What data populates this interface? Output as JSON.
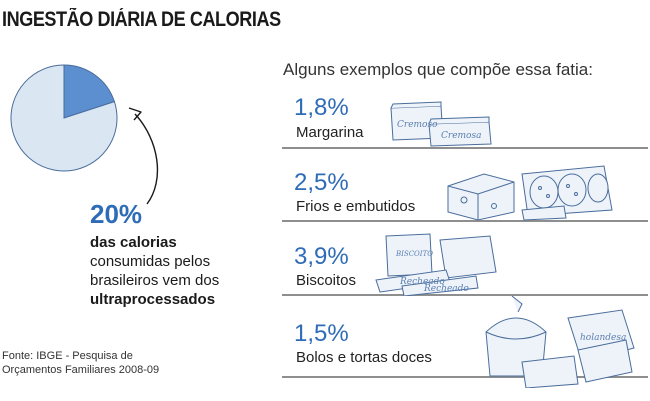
{
  "title": "INGESTÃO DIÁRIA DE CALORIAS",
  "headline": {
    "percent": "20%",
    "line1_bold": "das calorias",
    "line2": "consumidas pelos",
    "line3": "brasileiros vem dos",
    "line4_bold": "ultraprocessados"
  },
  "source": {
    "line1": "Fonte: IBGE - Pesquisa de",
    "line2": "Orçamentos Familiares 2008-09"
  },
  "examples_title": "Alguns exemplos que compõe essa fatia:",
  "chart_data": {
    "type": "pie",
    "title": "INGESTÃO DIÁRIA DE CALORIAS",
    "slices": [
      {
        "label": "ultraprocessados",
        "value": 20,
        "color": "#5b8fd0"
      },
      {
        "label": "",
        "value": 80,
        "color": "#dbe6f3"
      }
    ],
    "examples": [
      {
        "category": "Margarina",
        "value": 1.8,
        "display": "1,8%"
      },
      {
        "category": "Frios e embutidos",
        "value": 2.5,
        "display": "2,5%"
      },
      {
        "category": "Biscoitos",
        "value": 3.9,
        "display": "3,9%"
      },
      {
        "category": "Bolos e tortas doces",
        "value": 1.5,
        "display": "1,5%"
      }
    ]
  },
  "product_labels": {
    "margarina_1": "Cremoso",
    "margarina_2": "Cremosa",
    "biscoito_1": "Recheado",
    "biscoito_2": "Recheado",
    "biscoito_box": "BISCOITO",
    "bolo_box": "holandesa"
  },
  "colors": {
    "accent": "#2e6cb7",
    "slice_highlight": "#5b8fd0",
    "slice_rest": "#dbe6f3",
    "shelf": "#8e8e8e"
  }
}
